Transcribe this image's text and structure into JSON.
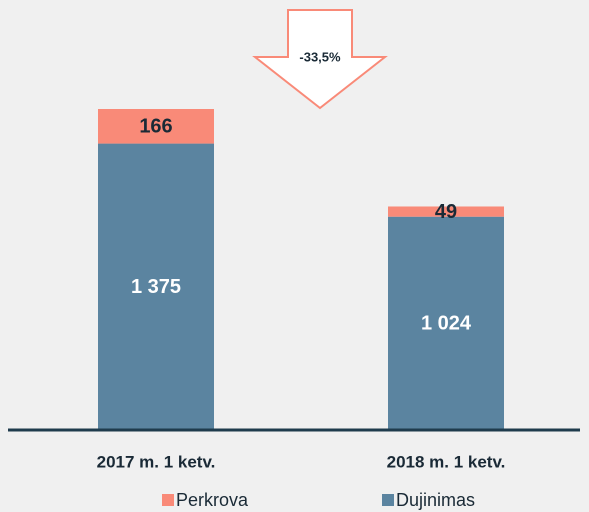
{
  "chart_data": {
    "type": "stacked-bar",
    "categories": [
      "2017 m. 1 ketv.",
      "2018 m. 1 ketv."
    ],
    "series": [
      {
        "name": "Dujinimas",
        "color": "#5b84a0",
        "values": [
          1375,
          1024
        ],
        "value_labels": [
          "1 375",
          "1 024"
        ],
        "label_color": "#ffffff"
      },
      {
        "name": "Perkrova",
        "color": "#f98a78",
        "values": [
          166,
          49
        ],
        "label_color": "#1a2a36"
      }
    ],
    "legend_order": [
      "Perkrova",
      "Dujinimas"
    ],
    "annotation": "-33,5%"
  }
}
